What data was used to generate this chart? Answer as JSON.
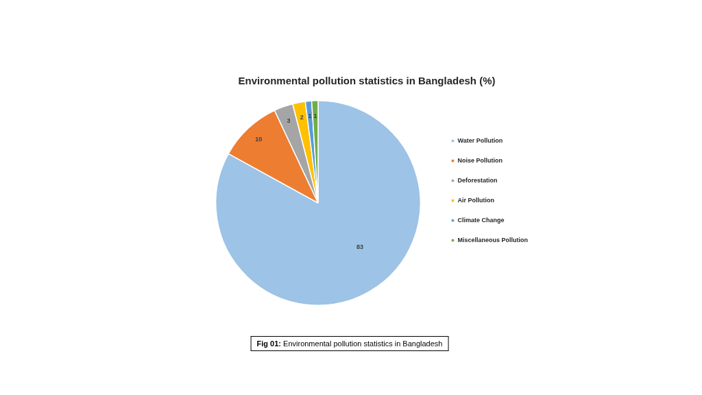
{
  "chart_data": {
    "type": "pie",
    "title": "Environmental pollution statistics in Bangladesh (%)",
    "categories": [
      "Water Pollution",
      "Noise Pollution",
      "Deforestation",
      "Air Pollution",
      "Climate Change",
      "Miscellaneous Pollution"
    ],
    "values": [
      83,
      10,
      3,
      2,
      1,
      1
    ],
    "colors": [
      "#9dc3e6",
      "#ed7d31",
      "#a5a5a5",
      "#ffc000",
      "#5b9bd5",
      "#70ad47"
    ],
    "data_labels": true,
    "legend": "right",
    "annotations": [
      "Fig 01: Environmental pollution statistics in Bangladesh"
    ]
  }
}
